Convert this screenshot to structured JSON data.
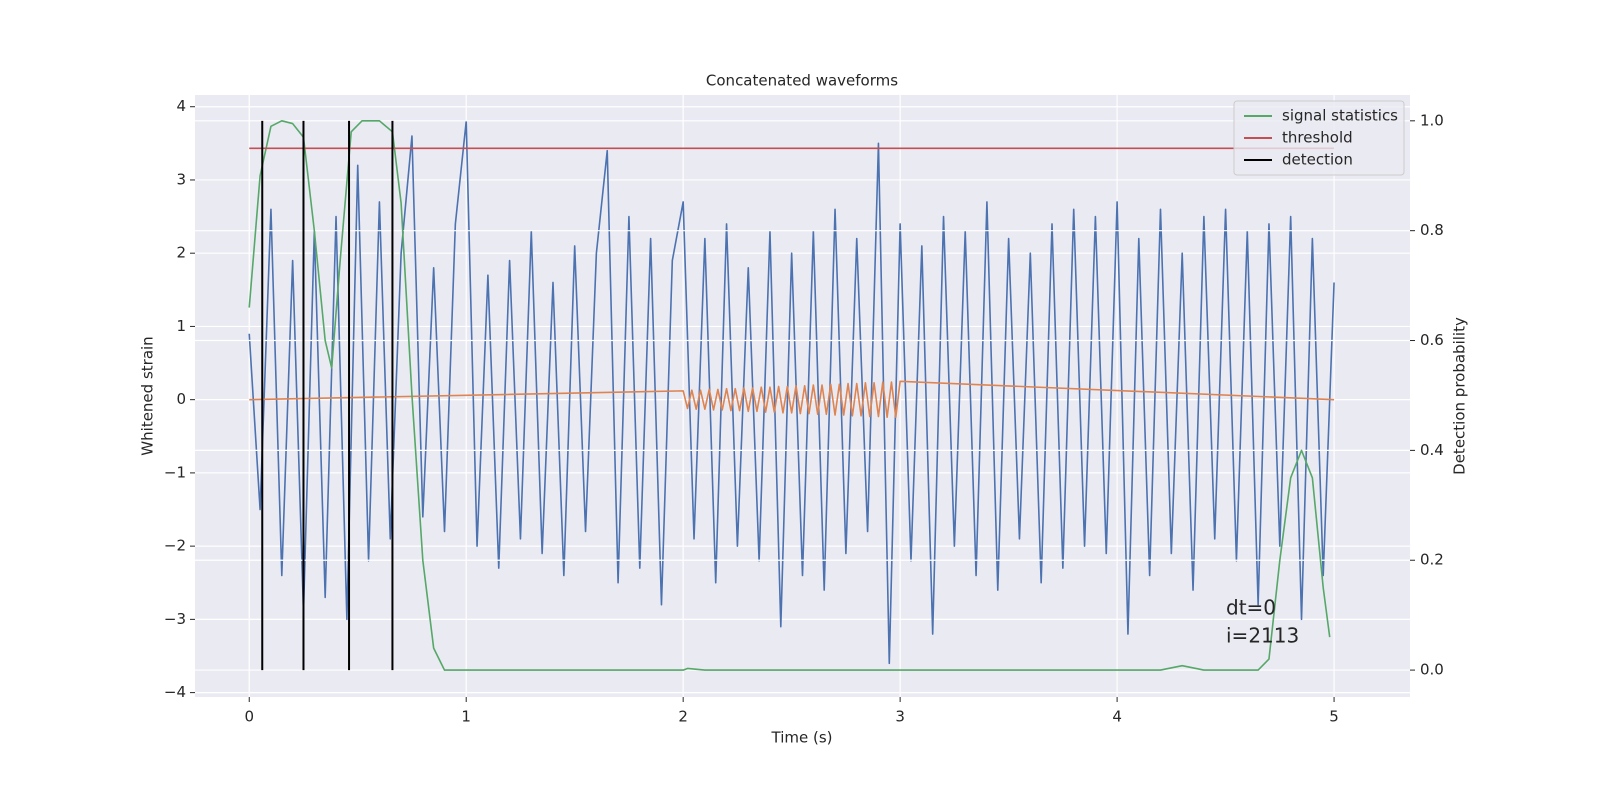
{
  "chart_data": {
    "type": "line",
    "title": "Concatenated waveforms",
    "xlabel": "Time (s)",
    "ylabel": "Whitened strain",
    "y2label": "Detection probability",
    "xlim": [
      -0.25,
      5.35
    ],
    "ylim": [
      -4.06,
      4.16
    ],
    "y2lim": [
      -0.049,
      1.047
    ],
    "xticks": [
      0,
      1,
      2,
      3,
      4,
      5
    ],
    "yticks": [
      {
        "value": -4,
        "label": "−4"
      },
      {
        "value": -3,
        "label": "−3"
      },
      {
        "value": -2,
        "label": "−2"
      },
      {
        "value": -1,
        "label": "−1"
      },
      0,
      1,
      2,
      3,
      4
    ],
    "y2ticks": [
      {
        "value": 0,
        "label": "0.0"
      },
      0.2,
      0.4,
      0.6,
      0.8,
      {
        "value": 1,
        "label": "1.0"
      }
    ],
    "grid": true,
    "legend": "upper right",
    "series": [
      {
        "color": "#4c72b0",
        "x": [
          0,
          0.05,
          0.1,
          0.15,
          0.2,
          0.25,
          0.3,
          0.35,
          0.4,
          0.45,
          0.5,
          0.55,
          0.6,
          0.65,
          0.7,
          0.75,
          0.8,
          0.85,
          0.9,
          0.95,
          1,
          1.05,
          1.1,
          1.15,
          1.2,
          1.25,
          1.3,
          1.35,
          1.4,
          1.45,
          1.5,
          1.55,
          1.6,
          1.65,
          1.7,
          1.75,
          1.8,
          1.85,
          1.9,
          1.95,
          2,
          2.05,
          2.1,
          2.15,
          2.2,
          2.25,
          2.3,
          2.35,
          2.4,
          2.45,
          2.5,
          2.55,
          2.6,
          2.65,
          2.7,
          2.75,
          2.8,
          2.85,
          2.9,
          2.95,
          3,
          3.05,
          3.1,
          3.15,
          3.2,
          3.25,
          3.3,
          3.35,
          3.4,
          3.45,
          3.5,
          3.55,
          3.6,
          3.65,
          3.7,
          3.75,
          3.8,
          3.85,
          3.9,
          3.95,
          4,
          4.05,
          4.1,
          4.15,
          4.2,
          4.25,
          4.3,
          4.35,
          4.4,
          4.45,
          4.5,
          4.55,
          4.6,
          4.65,
          4.7,
          4.75,
          4.8,
          4.85,
          4.9,
          4.95,
          5
        ],
        "values": [
          0.9,
          -1.5,
          2.6,
          -2.4,
          1.9,
          -2.9,
          2.3,
          -2.7,
          2.5,
          -3.0,
          3.2,
          -2.2,
          2.7,
          -1.9,
          2.0,
          3.6,
          -1.6,
          1.8,
          -1.8,
          2.4,
          3.8,
          -2.0,
          1.7,
          -2.3,
          1.9,
          -1.9,
          2.3,
          -2.1,
          1.6,
          -2.4,
          2.1,
          -1.8,
          2.0,
          3.4,
          -2.5,
          2.5,
          -2.3,
          2.2,
          -2.8,
          1.9,
          2.7,
          -1.9,
          2.2,
          -2.5,
          2.4,
          -2.0,
          1.8,
          -2.2,
          2.3,
          -3.1,
          2.0,
          -2.4,
          2.3,
          -2.6,
          2.6,
          -2.1,
          2.2,
          -1.8,
          3.5,
          -3.6,
          2.4,
          -2.2,
          2.1,
          -3.2,
          2.5,
          -2.0,
          2.3,
          -2.4,
          2.7,
          -2.6,
          2.2,
          -1.9,
          2.0,
          -2.5,
          2.4,
          -2.3,
          2.6,
          -2.0,
          2.5,
          -2.1,
          2.7,
          -3.2,
          2.2,
          -2.4,
          2.6,
          -2.1,
          2.0,
          -2.6,
          2.5,
          -1.9,
          2.6,
          -2.2,
          2.3,
          -2.8,
          2.4,
          -2.0,
          2.5,
          -3.0,
          2.2,
          -2.4,
          1.6
        ]
      },
      {
        "color": "#dd8452",
        "x": [
          0,
          2,
          2.02,
          2.04,
          2.06,
          2.08,
          2.1,
          2.12,
          2.14,
          2.16,
          2.18,
          2.2,
          2.22,
          2.24,
          2.26,
          2.28,
          2.3,
          2.32,
          2.34,
          2.36,
          2.38,
          2.4,
          2.42,
          2.44,
          2.46,
          2.48,
          2.5,
          2.52,
          2.54,
          2.56,
          2.58,
          2.6,
          2.62,
          2.64,
          2.66,
          2.68,
          2.7,
          2.72,
          2.74,
          2.76,
          2.78,
          2.8,
          2.82,
          2.84,
          2.86,
          2.88,
          2.9,
          2.92,
          2.94,
          2.96,
          2.98,
          3,
          5
        ],
        "values": [
          0,
          0.12,
          -0.12,
          0.13,
          -0.13,
          0.13,
          -0.13,
          0.14,
          -0.14,
          0.14,
          -0.14,
          0.15,
          -0.15,
          0.15,
          -0.15,
          0.16,
          -0.16,
          0.16,
          -0.16,
          0.17,
          -0.17,
          0.17,
          -0.17,
          0.18,
          -0.18,
          0.18,
          -0.18,
          0.19,
          -0.19,
          0.19,
          -0.19,
          0.2,
          -0.2,
          0.2,
          -0.2,
          0.21,
          -0.21,
          0.21,
          -0.21,
          0.22,
          -0.22,
          0.22,
          -0.22,
          0.23,
          -0.23,
          0.23,
          -0.23,
          0.24,
          -0.24,
          0.24,
          -0.24,
          0.25,
          0
        ]
      },
      {
        "name": "signal statistics",
        "color": "#55a868",
        "axis": "y2",
        "x": [
          0,
          0.05,
          0.1,
          0.15,
          0.2,
          0.25,
          0.3,
          0.35,
          0.38,
          0.42,
          0.47,
          0.52,
          0.6,
          0.66,
          0.7,
          0.75,
          0.8,
          0.85,
          0.9,
          1.5,
          2,
          2.02,
          2.1,
          4.2,
          4.3,
          4.4,
          4.65,
          4.7,
          4.75,
          4.8,
          4.85,
          4.9,
          4.95,
          4.98
        ],
        "values": [
          0.66,
          0.9,
          0.99,
          1.0,
          0.995,
          0.97,
          0.8,
          0.6,
          0.55,
          0.75,
          0.98,
          1.0,
          1.0,
          0.98,
          0.85,
          0.5,
          0.2,
          0.04,
          0,
          0,
          0,
          0.003,
          0,
          0,
          0.008,
          0,
          0,
          0.02,
          0.2,
          0.35,
          0.4,
          0.35,
          0.15,
          0.06
        ]
      },
      {
        "name": "threshold",
        "color": "#c44e52",
        "axis": "y2",
        "x": [
          0,
          5
        ],
        "values": [
          0.95,
          0.95
        ]
      }
    ],
    "detections": {
      "name": "detection",
      "color": "#000000",
      "x": [
        0.06,
        0.25,
        0.46,
        0.66
      ],
      "ymin": 0,
      "ymax": 1
    },
    "annotations": [
      "dt=0",
      "i=2113"
    ]
  }
}
